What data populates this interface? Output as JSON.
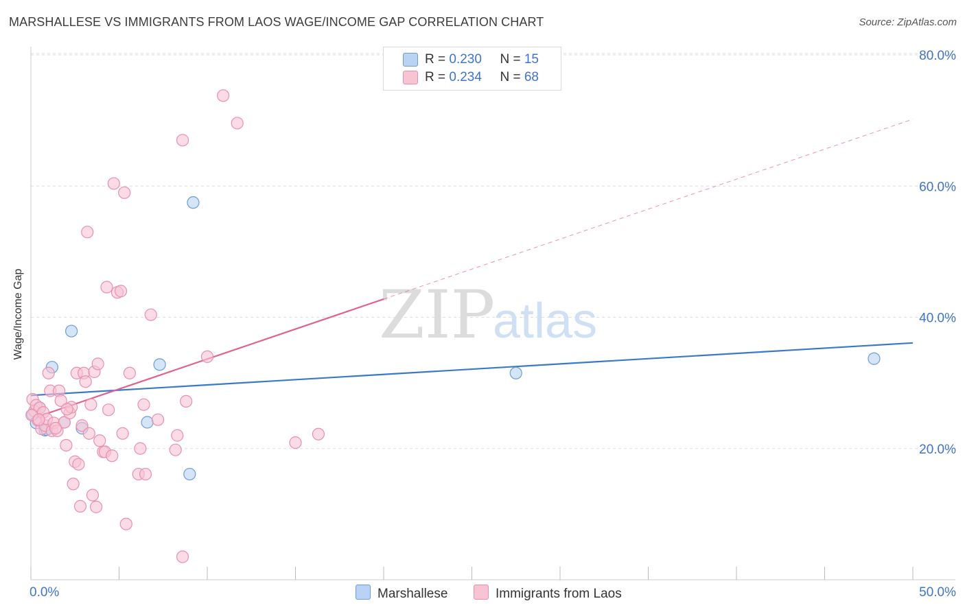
{
  "header": {
    "title": "MARSHALLESE VS IMMIGRANTS FROM LAOS WAGE/INCOME GAP CORRELATION CHART",
    "source": "Source: ZipAtlas.com"
  },
  "legend": {
    "series1": {
      "r_label": "R = ",
      "r_value": "0.230",
      "n_label": "N = ",
      "n_value": "15"
    },
    "series2": {
      "r_label": "R = ",
      "r_value": "0.234",
      "n_label": "N = ",
      "n_value": "68"
    }
  },
  "bottom_legend": {
    "series1": "Marshallese",
    "series2": "Immigrants from Laos"
  },
  "watermark": {
    "zip": "ZIP",
    "atlas": "atlas"
  },
  "colors": {
    "blue_fill": "#b8d3f3",
    "blue_stroke": "#6e9bd8",
    "blue_line": "#3a78cc",
    "pink_fill": "#f8c3d3",
    "pink_stroke": "#e890ab",
    "pink_line": "#e0628d",
    "tick_label": "#3f74c9",
    "grid": "#dddddd"
  },
  "chart_data": {
    "type": "scatter",
    "title": "MARSHALLESE VS IMMIGRANTS FROM LAOS WAGE/INCOME GAP CORRELATION CHART",
    "xlabel": "",
    "ylabel": "Wage/Income Gap",
    "xlim": [
      0,
      50
    ],
    "ylim": [
      0,
      80
    ],
    "x_tick_labels": [
      "0.0%",
      "50.0%"
    ],
    "y_ticks": [
      20,
      40,
      60,
      80
    ],
    "y_tick_labels": [
      "20.0%",
      "40.0%",
      "60.0%",
      "80.0%"
    ],
    "grid": true,
    "series": [
      {
        "name": "Marshallese",
        "color": "blue",
        "points": [
          [
            0.1,
            25.2
          ],
          [
            0.3,
            23.9
          ],
          [
            0.8,
            22.8
          ],
          [
            0.9,
            22.9
          ],
          [
            1.2,
            32.4
          ],
          [
            1.9,
            24.0
          ],
          [
            2.3,
            37.9
          ],
          [
            2.9,
            23.1
          ],
          [
            6.6,
            24.0
          ],
          [
            7.3,
            32.8
          ],
          [
            9.0,
            16.1
          ],
          [
            9.2,
            57.5
          ],
          [
            27.5,
            31.5
          ],
          [
            47.8,
            33.7
          ],
          [
            0.5,
            26.2
          ]
        ],
        "trend": {
          "x0": 0,
          "y0": 28.1,
          "x1": 50,
          "y1": 36.1,
          "solid_to": 50
        }
      },
      {
        "name": "Immigrants from Laos",
        "color": "pink",
        "points": [
          [
            0.1,
            27.5
          ],
          [
            0.2,
            25.7
          ],
          [
            0.3,
            26.6
          ],
          [
            0.4,
            24.3
          ],
          [
            0.5,
            26.2
          ],
          [
            0.6,
            23.0
          ],
          [
            0.7,
            25.5
          ],
          [
            0.8,
            23.5
          ],
          [
            0.9,
            24.5
          ],
          [
            1.0,
            31.5
          ],
          [
            1.1,
            28.8
          ],
          [
            1.2,
            22.7
          ],
          [
            1.3,
            23.9
          ],
          [
            1.5,
            22.7
          ],
          [
            1.6,
            28.8
          ],
          [
            1.7,
            27.3
          ],
          [
            1.9,
            24.0
          ],
          [
            2.0,
            20.5
          ],
          [
            2.2,
            25.4
          ],
          [
            2.3,
            26.3
          ],
          [
            2.4,
            14.6
          ],
          [
            2.5,
            18.0
          ],
          [
            2.6,
            31.5
          ],
          [
            2.7,
            17.6
          ],
          [
            2.8,
            11.2
          ],
          [
            2.9,
            23.5
          ],
          [
            3.0,
            31.5
          ],
          [
            3.1,
            30.2
          ],
          [
            3.2,
            53.0
          ],
          [
            3.3,
            22.3
          ],
          [
            3.4,
            26.7
          ],
          [
            3.5,
            12.9
          ],
          [
            3.6,
            31.7
          ],
          [
            3.7,
            11.1
          ],
          [
            3.8,
            32.9
          ],
          [
            3.9,
            21.2
          ],
          [
            4.1,
            19.5
          ],
          [
            4.2,
            19.5
          ],
          [
            4.3,
            44.6
          ],
          [
            4.4,
            25.9
          ],
          [
            4.6,
            18.9
          ],
          [
            4.7,
            60.4
          ],
          [
            4.9,
            43.8
          ],
          [
            5.1,
            44.0
          ],
          [
            5.2,
            22.3
          ],
          [
            5.3,
            59.0
          ],
          [
            5.4,
            8.5
          ],
          [
            5.6,
            31.5
          ],
          [
            6.1,
            16.1
          ],
          [
            6.2,
            20.0
          ],
          [
            6.4,
            26.7
          ],
          [
            6.5,
            16.1
          ],
          [
            6.8,
            40.4
          ],
          [
            7.2,
            24.4
          ],
          [
            8.2,
            19.8
          ],
          [
            8.3,
            22.0
          ],
          [
            8.6,
            67.0
          ],
          [
            8.6,
            3.5
          ],
          [
            8.8,
            27.2
          ],
          [
            10.0,
            34.0
          ],
          [
            10.9,
            73.8
          ],
          [
            11.7,
            69.6
          ],
          [
            15.0,
            20.9
          ],
          [
            16.3,
            22.2
          ],
          [
            0.05,
            25.1
          ],
          [
            1.4,
            23.1
          ],
          [
            2.05,
            26.0
          ],
          [
            0.45,
            24.4
          ]
        ],
        "trend": {
          "x0": 0,
          "y0": 24.5,
          "x1": 50,
          "y1": 70.2,
          "solid_to": 20
        }
      }
    ]
  }
}
